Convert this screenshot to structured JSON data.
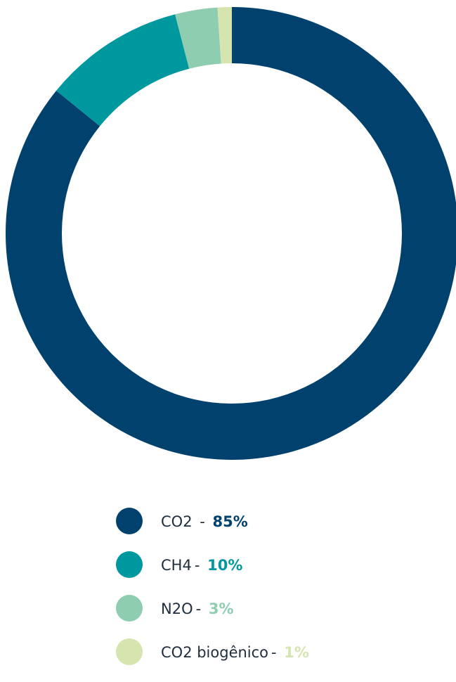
{
  "chart_data": {
    "type": "pie",
    "donut": true,
    "categories": [
      "CO2",
      "CH4",
      "N2O",
      "CO2 biogênico"
    ],
    "values": [
      85,
      10,
      3,
      1
    ],
    "percent_labels": [
      "85%",
      "10%",
      "3%",
      "1%"
    ],
    "colors": [
      "#01416e",
      "#00989f",
      "#8ecdb0",
      "#d6e4b0"
    ],
    "separators": [
      " - ",
      "- ",
      "- ",
      "- "
    ],
    "legend_position": "bottom",
    "start_angle": "top",
    "direction": "clockwise"
  }
}
